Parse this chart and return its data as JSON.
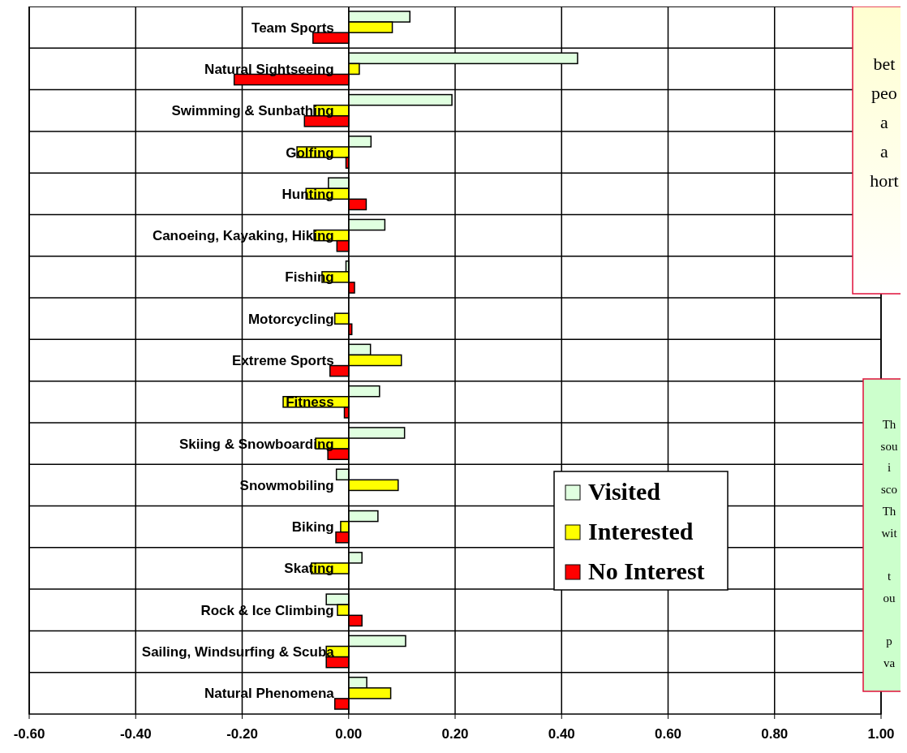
{
  "chart_data": {
    "type": "bar",
    "orientation": "horizontal",
    "categories": [
      "Team Sports",
      "Natural Sightseeing",
      "Swimming & Sunbathing",
      "Golfing",
      "Hunting",
      "Canoeing, Kayaking, Hiking",
      "Fishing",
      "Motorcycling",
      "Extreme Sports",
      "Fitness",
      "Skiing & Snowboarding",
      "Snowmobiling",
      "Biking",
      "Skating",
      "Rock & Ice Climbing",
      "Sailing, Windsurfing & Scuba",
      "Natural Phenomena"
    ],
    "series": [
      {
        "name": "Visited",
        "color": "#e0ffe0",
        "values": [
          0.115,
          0.43,
          0.194,
          0.042,
          -0.038,
          0.068,
          -0.005,
          0,
          0.041,
          0.058,
          0.105,
          -0.023,
          0.055,
          0.025,
          -0.042,
          0.107,
          0.034
        ]
      },
      {
        "name": "Interested",
        "color": "#ffff00",
        "values": [
          0.082,
          0.02,
          -0.065,
          -0.097,
          -0.08,
          -0.065,
          -0.05,
          -0.026,
          0.099,
          -0.123,
          -0.062,
          0.093,
          -0.015,
          -0.07,
          -0.021,
          -0.042,
          0.079
        ]
      },
      {
        "name": "No Interest",
        "color": "#ff0000",
        "values": [
          -0.067,
          -0.215,
          -0.083,
          -0.005,
          0.033,
          -0.022,
          0.011,
          0.006,
          -0.035,
          -0.008,
          -0.039,
          0,
          -0.024,
          0,
          0.025,
          -0.042,
          -0.026
        ]
      }
    ],
    "xlim": [
      -0.6,
      1.0
    ],
    "xticks": [
      {
        "value": -0.6,
        "label": "-0.60"
      },
      {
        "value": -0.4,
        "label": "-0.40"
      },
      {
        "value": -0.2,
        "label": "-0.20"
      },
      {
        "value": 0,
        "label": "0.00"
      },
      {
        "value": 0.2,
        "label": "0.20"
      },
      {
        "value": 0.4,
        "label": "0.40"
      },
      {
        "value": 0.6,
        "label": "0.60"
      },
      {
        "value": 0.8,
        "label": "0.80"
      },
      {
        "value": 1.0,
        "label": "1.00"
      }
    ],
    "grid": true,
    "legend": "right",
    "annotations": [
      "bet\npeo\na\na\nhort",
      "Th\nsou\ni\nsco\nTh\nwit\n\nt\nou\n\np\nva"
    ]
  }
}
